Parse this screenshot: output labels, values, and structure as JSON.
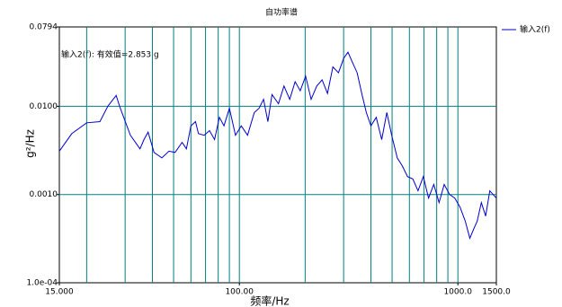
{
  "chart_data": {
    "type": "line",
    "title": "自功率谱",
    "xlabel": "频率/Hz",
    "ylabel": "g²/Hz",
    "annotation": "输入2(f): 有效值=2.853 g",
    "xscale": "log",
    "yscale": "log",
    "xlim": [
      15,
      1500
    ],
    "ylim": [
      0.0001,
      0.0794
    ],
    "xticks": [
      {
        "value": 15,
        "label": "15.000"
      },
      {
        "value": 100,
        "label": "100.00"
      },
      {
        "value": 1000,
        "label": "1000.0"
      },
      {
        "value": 1500,
        "label": "1500.0"
      }
    ],
    "yticks": [
      {
        "value": 0.0001,
        "label": "1.0e-04"
      },
      {
        "value": 0.001,
        "label": "0.0010"
      },
      {
        "value": 0.01,
        "label": "0.0100"
      },
      {
        "value": 0.0794,
        "label": "0.0794"
      }
    ],
    "xgrid": [
      20,
      30,
      40,
      50,
      60,
      70,
      80,
      90,
      100,
      200,
      300,
      400,
      500,
      600,
      700,
      800,
      900,
      1000
    ],
    "ygrid": [
      0.001,
      0.01
    ],
    "grid_color": "#008080",
    "legend": "top-right",
    "x": [
      15,
      17.1,
      20,
      23,
      25,
      27.3,
      28.3,
      31.7,
      35.1,
      36.6,
      38.2,
      40.7,
      44.2,
      47.6,
      50.8,
      54.7,
      57.2,
      60,
      63,
      65,
      69,
      73,
      77,
      81,
      85,
      90,
      96,
      102,
      109,
      117,
      123,
      129,
      135,
      141,
      151,
      160,
      170,
      180,
      190,
      201,
      213,
      226,
      239,
      253,
      268,
      284,
      300,
      314,
      330,
      346,
      363,
      381,
      400,
      423,
      448,
      473,
      498,
      528,
      557,
      588,
      622,
      657,
      695,
      734,
      776,
      820,
      866,
      916,
      968,
      1023,
      1081,
      1134,
      1178,
      1226,
      1281,
      1340,
      1400,
      1500
    ],
    "series": [
      {
        "name": "输入2(f)",
        "color": "#0000cc",
        "values": [
          0.0031,
          0.0049,
          0.0065,
          0.0067,
          0.01,
          0.0133,
          0.01,
          0.0047,
          0.0033,
          0.0042,
          0.0051,
          0.003,
          0.0026,
          0.0031,
          0.003,
          0.0039,
          0.0033,
          0.006,
          0.0067,
          0.0049,
          0.0047,
          0.0053,
          0.0042,
          0.0075,
          0.006,
          0.0095,
          0.0047,
          0.006,
          0.0047,
          0.0085,
          0.0095,
          0.012,
          0.0067,
          0.0136,
          0.0107,
          0.017,
          0.012,
          0.019,
          0.015,
          0.022,
          0.012,
          0.017,
          0.02,
          0.014,
          0.028,
          0.024,
          0.035,
          0.041,
          0.031,
          0.024,
          0.014,
          0.0085,
          0.006,
          0.0075,
          0.0042,
          0.0085,
          0.0047,
          0.0026,
          0.0021,
          0.0016,
          0.0015,
          0.0011,
          0.0016,
          0.00091,
          0.0013,
          0.00081,
          0.0013,
          0.001,
          0.00091,
          0.00072,
          0.0005,
          0.00032,
          0.0004,
          0.0005,
          0.00081,
          0.00057,
          0.0011,
          0.00091
        ]
      }
    ]
  }
}
